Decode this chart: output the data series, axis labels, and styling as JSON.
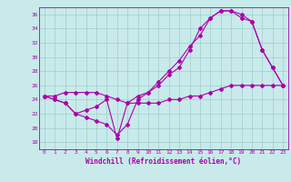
{
  "xlabel": "Windchill (Refroidissement éolien,°C)",
  "bg_color": "#c8eaea",
  "grid_color": "#a0cccc",
  "line_color": "#aa00aa",
  "xlim": [
    -0.5,
    23.5
  ],
  "ylim": [
    17,
    37
  ],
  "yticks": [
    18,
    20,
    22,
    24,
    26,
    28,
    30,
    32,
    34,
    36
  ],
  "xticks": [
    0,
    1,
    2,
    3,
    4,
    5,
    6,
    7,
    8,
    9,
    10,
    11,
    12,
    13,
    14,
    15,
    16,
    17,
    18,
    19,
    20,
    21,
    22,
    23
  ],
  "line1_x": [
    0,
    1,
    2,
    3,
    4,
    5,
    6,
    7,
    8,
    9,
    10,
    11,
    12,
    13,
    14,
    15,
    16,
    17,
    18,
    19,
    20,
    21,
    22,
    23
  ],
  "line1_y": [
    24.5,
    24.0,
    23.5,
    22.0,
    21.5,
    21.0,
    20.5,
    19.0,
    20.5,
    24.0,
    25.0,
    26.5,
    28.0,
    29.5,
    31.5,
    33.0,
    35.5,
    36.5,
    36.5,
    36.0,
    35.0,
    31.0,
    28.5,
    26.0
  ],
  "line2_x": [
    0,
    1,
    2,
    3,
    4,
    5,
    6,
    7,
    8,
    9,
    10,
    11,
    12,
    13,
    14,
    15,
    16,
    17,
    18,
    19,
    20,
    21,
    22,
    23
  ],
  "line2_y": [
    24.5,
    24.0,
    23.5,
    22.0,
    22.5,
    23.0,
    24.0,
    18.5,
    23.5,
    24.5,
    25.0,
    26.0,
    27.5,
    28.5,
    31.0,
    34.0,
    35.5,
    36.5,
    36.5,
    35.5,
    35.0,
    31.0,
    28.5,
    26.0
  ],
  "line3_x": [
    0,
    1,
    2,
    3,
    4,
    5,
    6,
    7,
    8,
    9,
    10,
    11,
    12,
    13,
    14,
    15,
    16,
    17,
    18,
    19,
    20,
    21,
    22,
    23
  ],
  "line3_y": [
    24.5,
    24.5,
    25.0,
    25.0,
    25.0,
    25.0,
    24.5,
    24.0,
    23.5,
    23.5,
    23.5,
    23.5,
    24.0,
    24.0,
    24.5,
    24.5,
    25.0,
    25.5,
    26.0,
    26.0,
    26.0,
    26.0,
    26.0,
    26.0
  ]
}
